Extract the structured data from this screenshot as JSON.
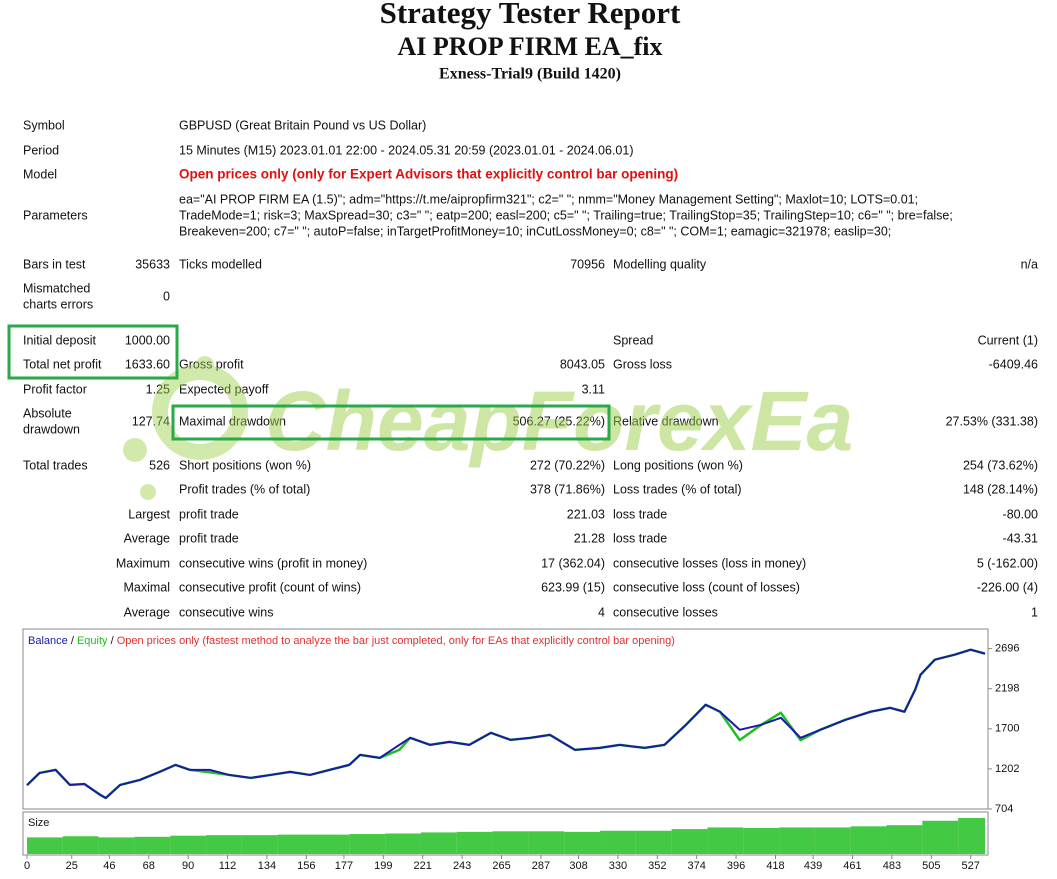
{
  "header": {
    "title": "Strategy Tester Report",
    "subtitle": "AI PROP FIRM EA_fix",
    "server": "Exness-Trial9 (Build 1420)"
  },
  "info": [
    {
      "label": "Symbol",
      "value": [
        "GBPUSD (Great Britain Pound vs US Dollar)"
      ]
    },
    {
      "label": "Period",
      "value": [
        "15 Minutes (M15) 2023.01.01 22:00 - 2024.05.31 20:59 (2023.01.01 - 2024.06.01)"
      ]
    },
    {
      "label": "Model",
      "value": [
        "Open prices only (only for Expert Advisors that explicitly control bar opening)"
      ],
      "highlight": true
    },
    {
      "label": "Parameters",
      "value": [
        "ea=\"AI PROP FIRM EA (1.5)\"; adm=\"https://t.me/aipropfirm321\"; c2=\" \"; nmm=\"Money Management Setting\"; Maxlot=10; LOTS=0.01;",
        "TradeMode=1; risk=3; MaxSpread=30; c3=\" \"; eatp=200; easl=200; c5=\" \"; Trailing=true; TrailingStop=35; TrailingStep=10; c6=\" \"; bre=false;",
        "Breakeven=200; c7=\" \"; autoP=false; inTargetProfitMoney=10; inCutLossMoney=0; c8=\" \"; COM=1; eamagic=321978; easlip=30;"
      ]
    }
  ],
  "stats": [
    [
      "Bars in test",
      "35633",
      "Ticks modelled",
      "70956",
      "Modelling quality",
      "n/a"
    ],
    [
      [
        "Mismatched",
        "charts errors"
      ],
      "0",
      null,
      null,
      null,
      null
    ],
    [
      "Initial deposit",
      "1000.00",
      null,
      null,
      "Spread",
      "Current (1)"
    ],
    [
      "Total net profit",
      "1633.60",
      "Gross profit",
      "8043.05",
      "Gross loss",
      "-6409.46"
    ],
    [
      "Profit factor",
      "1.25",
      "Expected payoff",
      "3.11",
      null,
      null
    ],
    [
      [
        "Absolute",
        "drawdown"
      ],
      "127.74",
      "Maximal drawdown",
      "506.27 (25.22%)",
      "Relative drawdown",
      "27.53% (331.38)"
    ],
    [
      "Total trades",
      "526",
      "Short positions (won %)",
      "272 (70.22%)",
      "Long positions (won %)",
      "254 (73.62%)"
    ],
    [
      null,
      null,
      "Profit trades (% of total)",
      "378 (71.86%)",
      "Loss trades (% of total)",
      "148 (28.14%)"
    ],
    [
      null,
      "Largest",
      "profit trade",
      "221.03",
      "loss trade",
      "-80.00"
    ],
    [
      null,
      "Average",
      "profit trade",
      "21.28",
      "loss trade",
      "-43.31"
    ],
    [
      null,
      "Maximum",
      "consecutive wins (profit in money)",
      "17 (362.04)",
      "consecutive losses (loss in money)",
      "5 (-162.00)"
    ],
    [
      null,
      "Maximal",
      "consecutive profit (count of wins)",
      "623.99 (15)",
      "consecutive loss (count of losses)",
      "-226.00 (4)"
    ],
    [
      null,
      "Average",
      "consecutive wins",
      "4",
      "consecutive losses",
      "1"
    ]
  ],
  "watermark": "CheapForexEa",
  "chart_data": {
    "type": "line",
    "legend_separator": "/",
    "legend_note": "Open prices only (fastest method to analyze the bar just completed, only for EAs that explicitly control bar opening)",
    "x": [
      0,
      7,
      16,
      24,
      32,
      41,
      44,
      52,
      63,
      74,
      83,
      91,
      102,
      113,
      125,
      136,
      147,
      158,
      169,
      180,
      186,
      197,
      208,
      214,
      225,
      236,
      247,
      259,
      270,
      281,
      292,
      306,
      320,
      331,
      345,
      356,
      368,
      379,
      387,
      398,
      410,
      421,
      432,
      443,
      457,
      471,
      482,
      490,
      496,
      499,
      507,
      518,
      527,
      535
    ],
    "series": [
      {
        "name": "Equity",
        "color": "#1fbf1f",
        "values": [
          1000,
          1152,
          1190,
          1003,
          1015,
          878,
          841,
          1003,
          1065,
          1165,
          1252,
          1190,
          1160,
          1127,
          1090,
          1127,
          1165,
          1127,
          1190,
          1252,
          1376,
          1339,
          1440,
          1588,
          1501,
          1538,
          1501,
          1650,
          1563,
          1588,
          1625,
          1439,
          1463,
          1501,
          1463,
          1501,
          1750,
          1999,
          1912,
          1560,
          1750,
          1900,
          1560,
          1688,
          1812,
          1912,
          1961,
          1912,
          2186,
          2372,
          2559,
          2621,
          2683,
          2634
        ]
      },
      {
        "name": "Balance",
        "color": "#1a1aa6",
        "values": [
          1000,
          1152,
          1190,
          1003,
          1015,
          878,
          841,
          1003,
          1065,
          1165,
          1252,
          1190,
          1190,
          1127,
          1090,
          1127,
          1165,
          1127,
          1190,
          1252,
          1376,
          1339,
          1501,
          1588,
          1501,
          1538,
          1501,
          1650,
          1563,
          1588,
          1625,
          1439,
          1463,
          1501,
          1463,
          1501,
          1750,
          1999,
          1912,
          1688,
          1750,
          1837,
          1588,
          1688,
          1812,
          1912,
          1961,
          1912,
          2186,
          2372,
          2559,
          2621,
          2683,
          2634
        ]
      }
    ],
    "xlim": [
      0,
      535
    ],
    "ylim": [
      704,
      2940
    ],
    "xticks": [
      0,
      25,
      46,
      68,
      90,
      112,
      134,
      156,
      177,
      199,
      221,
      243,
      265,
      287,
      308,
      330,
      352,
      374,
      396,
      418,
      439,
      461,
      483,
      505,
      527
    ],
    "yticks": [
      704,
      1202,
      1700,
      2198,
      2696
    ],
    "size_panel": {
      "label": "Size",
      "color": "#22c022",
      "x": [
        0,
        20,
        40,
        60,
        80,
        100,
        120,
        140,
        160,
        180,
        200,
        220,
        240,
        260,
        280,
        300,
        320,
        340,
        360,
        380,
        400,
        420,
        440,
        460,
        480,
        500,
        520
      ],
      "values": [
        0.03,
        0.032,
        0.03,
        0.031,
        0.033,
        0.034,
        0.034,
        0.035,
        0.035,
        0.036,
        0.037,
        0.039,
        0.04,
        0.041,
        0.041,
        0.04,
        0.042,
        0.042,
        0.045,
        0.048,
        0.047,
        0.048,
        0.048,
        0.05,
        0.052,
        0.06,
        0.065
      ]
    }
  }
}
